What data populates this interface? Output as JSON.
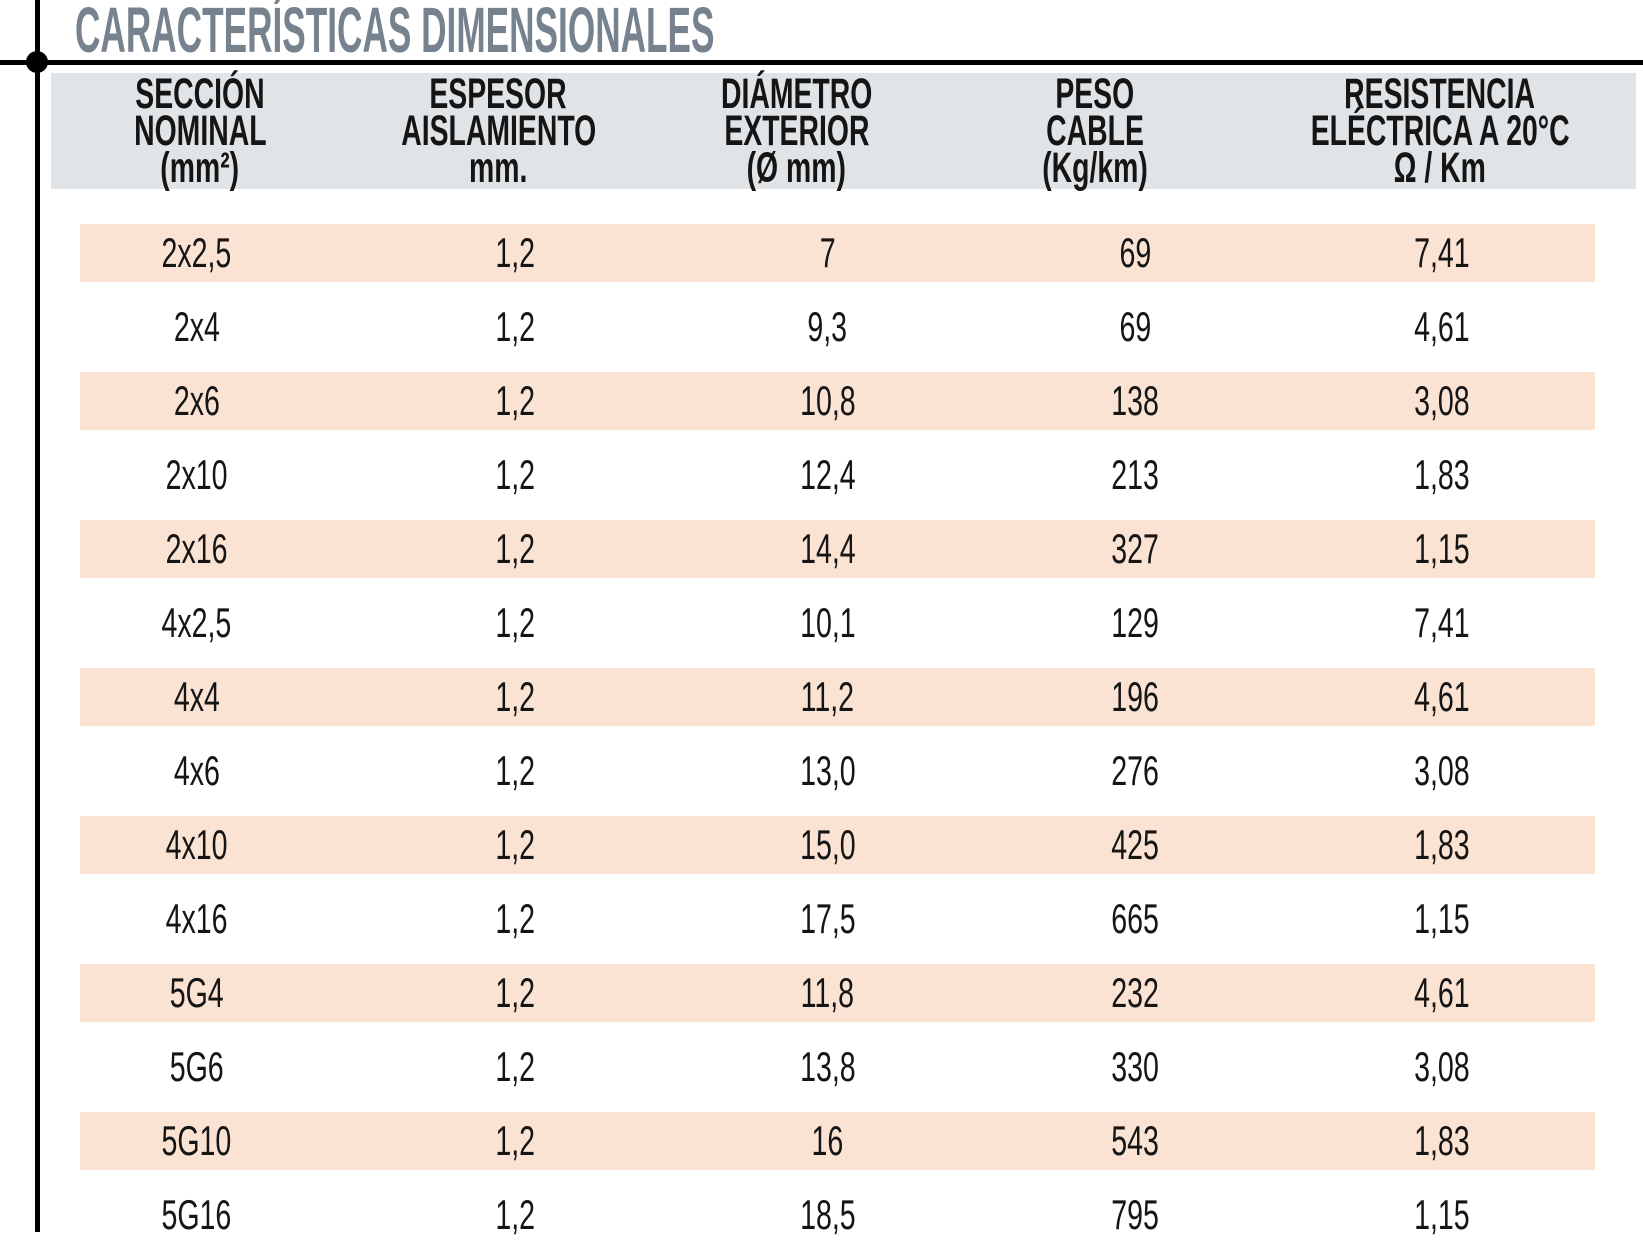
{
  "title": "CARACTERÍSTICAS DIMENSIONALES",
  "colors": {
    "row_stripe": "#fbe3d4",
    "header_background": "#e0e4e6",
    "title_color": "#76828e",
    "text_color": "#151515",
    "rule_color": "#000000"
  },
  "table": {
    "columns": [
      {
        "lines": [
          "SECCIÓN",
          "NOMINAL",
          "(mm²)"
        ]
      },
      {
        "lines": [
          "ESPESOR",
          "AISLAMIENTO",
          "mm."
        ]
      },
      {
        "lines": [
          "DIÁMETRO",
          "EXTERIOR",
          "(Ø mm)"
        ]
      },
      {
        "lines": [
          "PESO",
          "CABLE",
          "(Kg/km)"
        ]
      },
      {
        "lines": [
          "RESISTENCIA",
          "ELÉCTRICA A 20°C",
          "Ω / Km"
        ]
      }
    ],
    "rows": [
      [
        "2x2,5",
        "1,2",
        "7",
        "69",
        "7,41"
      ],
      [
        "2x4",
        "1,2",
        "9,3",
        "69",
        "4,61"
      ],
      [
        "2x6",
        "1,2",
        "10,8",
        "138",
        "3,08"
      ],
      [
        "2x10",
        "1,2",
        "12,4",
        "213",
        "1,83"
      ],
      [
        "2x16",
        "1,2",
        "14,4",
        "327",
        "1,15"
      ],
      [
        "4x2,5",
        "1,2",
        "10,1",
        "129",
        "7,41"
      ],
      [
        "4x4",
        "1,2",
        "11,2",
        "196",
        "4,61"
      ],
      [
        "4x6",
        "1,2",
        "13,0",
        "276",
        "3,08"
      ],
      [
        "4x10",
        "1,2",
        "15,0",
        "425",
        "1,83"
      ],
      [
        "4x16",
        "1,2",
        "17,5",
        "665",
        "1,15"
      ],
      [
        "5G4",
        "1,2",
        "11,8",
        "232",
        "4,61"
      ],
      [
        "5G6",
        "1,2",
        "13,8",
        "330",
        "3,08"
      ],
      [
        "5G10",
        "1,2",
        "16",
        "543",
        "1,83"
      ],
      [
        "5G16",
        "1,2",
        "18,5",
        "795",
        "1,15"
      ]
    ]
  }
}
